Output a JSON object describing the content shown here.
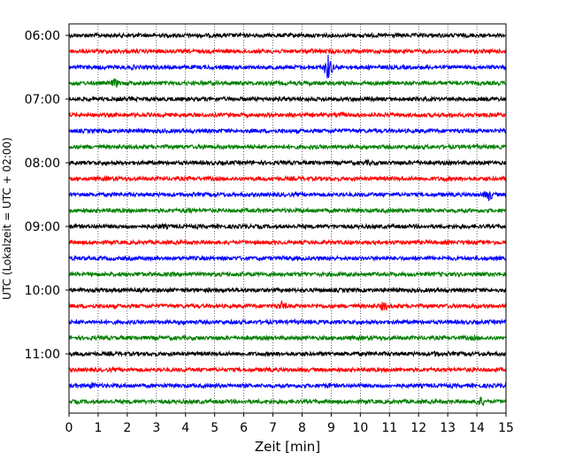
{
  "chart_data": {
    "type": "line",
    "chart_kind": "helicorder",
    "xlabel": "Zeit  [min]",
    "ylabel": "UTC (Lokalzeit = UTC + 02:00)",
    "xlim": [
      0,
      15
    ],
    "x_ticks": [
      "0",
      "1",
      "2",
      "3",
      "4",
      "5",
      "6",
      "7",
      "8",
      "9",
      "10",
      "11",
      "12",
      "13",
      "14",
      "15"
    ],
    "y_ticks": [
      "06:00",
      "07:00",
      "08:00",
      "09:00",
      "10:00",
      "11:00"
    ],
    "y_tick_rows": [
      0,
      4,
      8,
      12,
      16,
      20
    ],
    "grid": "vertical dotted at each minute",
    "trace_start": "06:00",
    "trace_interval_min": 15,
    "colors": [
      "#000000",
      "#ff0000",
      "#0000ff",
      "#008000"
    ],
    "traces": [
      {
        "start": "06:00",
        "color": "#000000",
        "events": []
      },
      {
        "start": "06:15",
        "color": "#ff0000",
        "events": [
          {
            "t": 8.3,
            "amp": 1.5
          },
          {
            "t": 9.0,
            "amp": 1.3
          }
        ]
      },
      {
        "start": "06:30",
        "color": "#0000ff",
        "events": [
          {
            "t": 2.2,
            "amp": 1.3
          },
          {
            "t": 8.9,
            "amp": 7.0
          }
        ]
      },
      {
        "start": "06:45",
        "color": "#008000",
        "events": [
          {
            "t": 1.6,
            "amp": 2.5
          }
        ]
      },
      {
        "start": "07:00",
        "color": "#000000",
        "events": []
      },
      {
        "start": "07:15",
        "color": "#ff0000",
        "events": [
          {
            "t": 9.3,
            "amp": 1.5
          }
        ]
      },
      {
        "start": "07:30",
        "color": "#0000ff",
        "events": [
          {
            "t": 14.9,
            "amp": 1.3
          }
        ]
      },
      {
        "start": "07:45",
        "color": "#008000",
        "events": [
          {
            "t": 4.6,
            "amp": 1.3
          }
        ]
      },
      {
        "start": "08:00",
        "color": "#000000",
        "events": [
          {
            "t": 10.3,
            "amp": 1.6
          },
          {
            "t": 12.0,
            "amp": 1.4
          }
        ]
      },
      {
        "start": "08:15",
        "color": "#ff0000",
        "events": [
          {
            "t": 1.3,
            "amp": 1.3
          },
          {
            "t": 12.9,
            "amp": 1.6
          }
        ]
      },
      {
        "start": "08:30",
        "color": "#0000ff",
        "events": [
          {
            "t": 14.4,
            "amp": 3.5
          }
        ]
      },
      {
        "start": "08:45",
        "color": "#008000",
        "events": [
          {
            "t": 4.1,
            "amp": 1.6
          }
        ]
      },
      {
        "start": "09:00",
        "color": "#000000",
        "events": [
          {
            "t": 3.2,
            "amp": 1.5
          },
          {
            "t": 9.0,
            "amp": 1.2
          }
        ]
      },
      {
        "start": "09:15",
        "color": "#ff0000",
        "events": []
      },
      {
        "start": "09:30",
        "color": "#0000ff",
        "events": [
          {
            "t": 2.7,
            "amp": 1.2
          }
        ]
      },
      {
        "start": "09:45",
        "color": "#008000",
        "events": [
          {
            "t": 2.4,
            "amp": 1.2
          }
        ]
      },
      {
        "start": "10:00",
        "color": "#000000",
        "events": []
      },
      {
        "start": "10:15",
        "color": "#ff0000",
        "events": [
          {
            "t": 7.3,
            "amp": 2.6
          },
          {
            "t": 10.8,
            "amp": 2.6
          }
        ]
      },
      {
        "start": "10:30",
        "color": "#0000ff",
        "events": [
          {
            "t": 3.9,
            "amp": 1.4
          }
        ]
      },
      {
        "start": "10:45",
        "color": "#008000",
        "events": [
          {
            "t": 13.9,
            "amp": 1.3
          }
        ]
      },
      {
        "start": "11:00",
        "color": "#000000",
        "events": [
          {
            "t": 12.6,
            "amp": 1.6
          }
        ]
      },
      {
        "start": "11:15",
        "color": "#ff0000",
        "events": [
          {
            "t": 13.8,
            "amp": 1.3
          }
        ]
      },
      {
        "start": "11:30",
        "color": "#0000ff",
        "events": [
          {
            "t": 0.8,
            "amp": 2.0
          },
          {
            "t": 8.9,
            "amp": 1.5
          }
        ]
      },
      {
        "start": "11:45",
        "color": "#008000",
        "events": [
          {
            "t": 14.1,
            "amp": 3.0
          }
        ]
      }
    ]
  }
}
